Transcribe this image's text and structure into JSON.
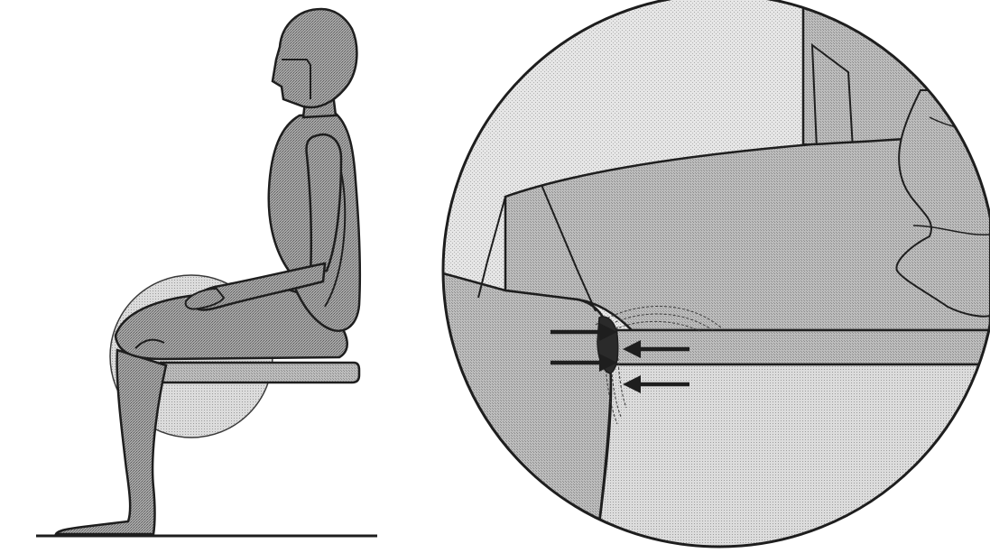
{
  "figure": {
    "description_visible_text": "",
    "panels": [
      {
        "name": "seated-figure-side-view"
      },
      {
        "name": "magnified-thigh-seat-edge-detail"
      }
    ],
    "colors": {
      "outline": "#1e1e1e",
      "body_fill": "#9a9a9a",
      "seat_fill": "#b9b9b9",
      "detail_light_fill": "#d6d6d6",
      "background": "#ffffff"
    },
    "pressure_arrows_count": 4
  }
}
